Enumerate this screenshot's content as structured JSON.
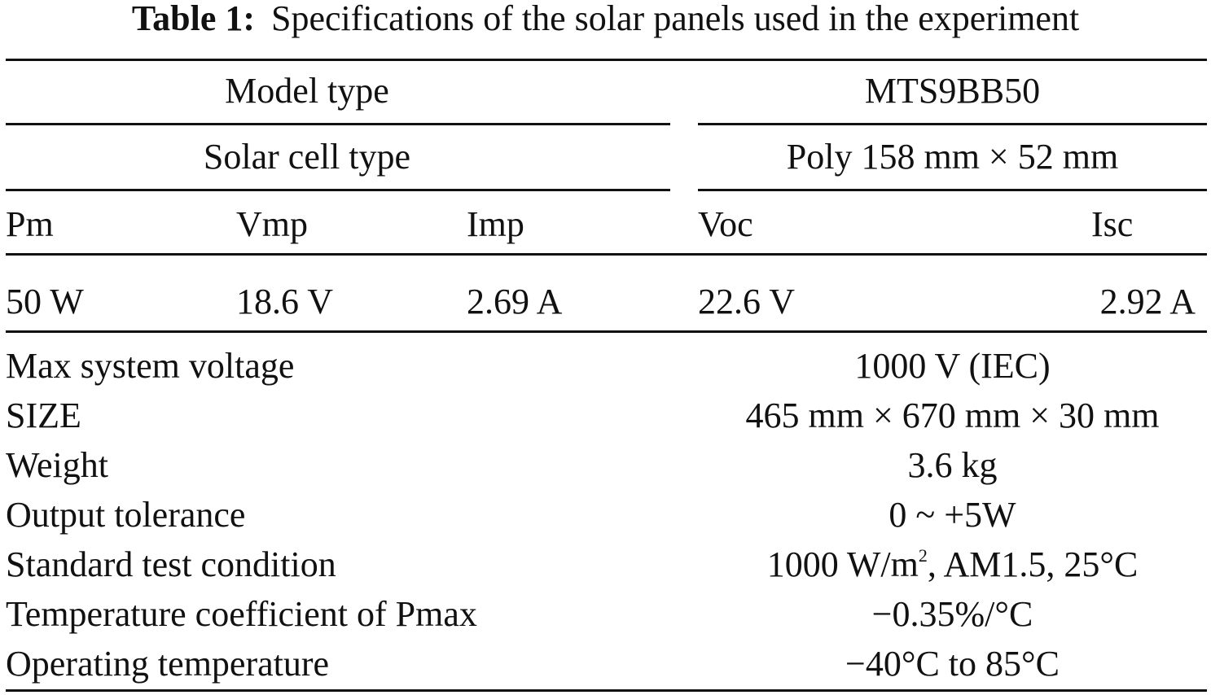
{
  "table": {
    "caption_label": "Table 1:",
    "caption_text": "Specifications of the solar panels used in the experiment",
    "model_type_label": "Model type",
    "model_type_value": "MTS9BB50",
    "cell_type_label": "Solar cell type",
    "cell_type_value": "Poly 158 mm × 52 mm",
    "headers": [
      "Pm",
      "Vmp",
      "Imp",
      "Voc",
      "Isc"
    ],
    "values": [
      "50 W",
      "18.6 V",
      "2.69 A",
      "22.6 V",
      "2.92 A"
    ],
    "specs": [
      {
        "label": "Max system voltage",
        "value": "1000 V (IEC)"
      },
      {
        "label": "SIZE",
        "value": "465 mm × 670 mm × 30 mm"
      },
      {
        "label": "Weight",
        "value": "3.6 kg"
      },
      {
        "label": "Output tolerance",
        "value": "0 ~ +5W"
      },
      {
        "label": "Standard test condition",
        "value_before": "1000 W/m",
        "value_sup": "2",
        "value_after": ", AM1.5, 25°C"
      },
      {
        "label": "Temperature coefficient of Pmax",
        "value": "−0.35%/°C"
      },
      {
        "label": "Operating temperature",
        "value": "−40°C to 85°C"
      }
    ]
  }
}
